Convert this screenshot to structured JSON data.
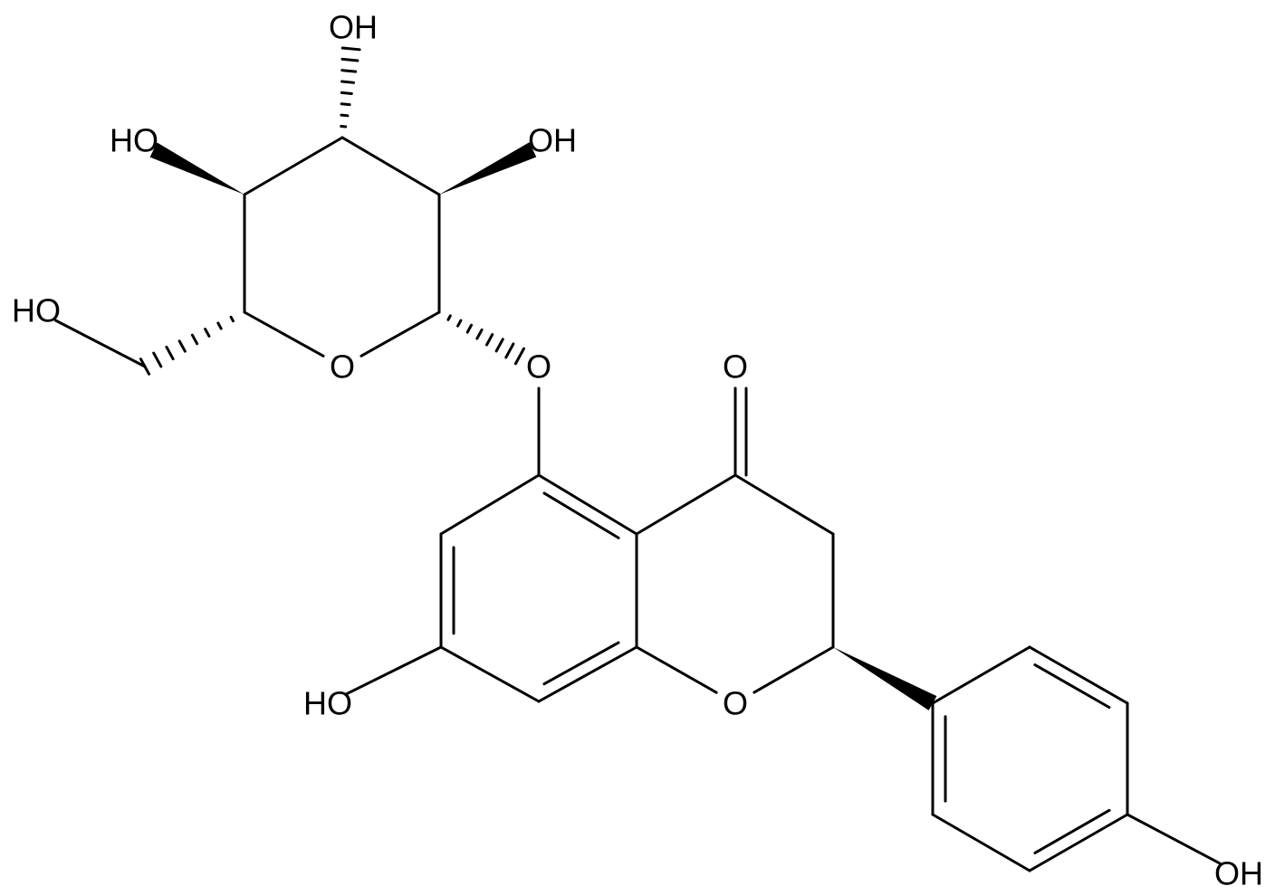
{
  "atoms": {
    "labels": [
      "OH",
      "HO",
      "OH",
      "HO",
      "O",
      "O",
      "O",
      "O",
      "HO",
      "OH"
    ]
  }
}
